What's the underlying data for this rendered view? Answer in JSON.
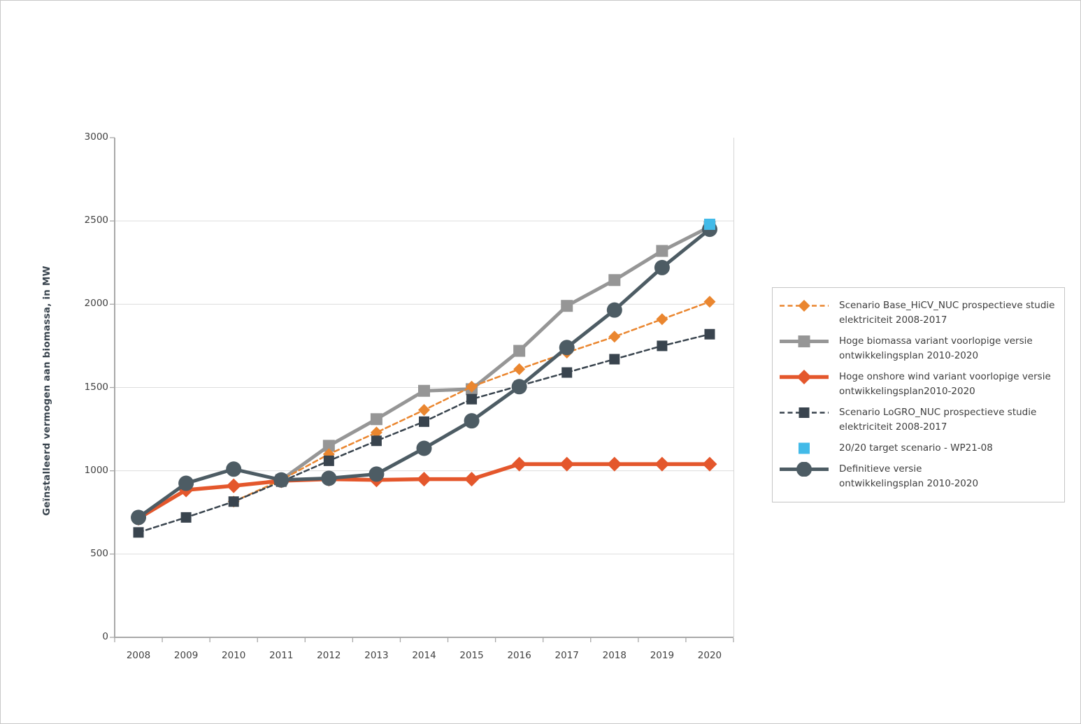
{
  "page": {
    "background": "#ffffff",
    "border_color": "#c8c8c8"
  },
  "chart_data": {
    "type": "line",
    "title": "",
    "xlabel": "",
    "ylabel": "Geïnstalleerd vermogen aan biomassa, in MW",
    "ylim": [
      0,
      3000
    ],
    "y_tick_step": 500,
    "grid": "horizontal",
    "legend_position": "right",
    "x": [
      "2008",
      "2009",
      "2010",
      "2011",
      "2012",
      "2013",
      "2014",
      "2015",
      "2016",
      "2017",
      "2018",
      "2019",
      "2020"
    ],
    "series": [
      {
        "key": "hoge_biomassa",
        "name": "Hoge biomassa variant voorlopige versie ontwikkelingsplan 2010-2020",
        "color": "#969696",
        "line": "solid",
        "line_width": 5,
        "marker": "square",
        "marker_size": 17,
        "values": [
          null,
          null,
          null,
          945,
          1150,
          1310,
          1480,
          1490,
          1720,
          1990,
          2145,
          2320,
          2465
        ]
      },
      {
        "key": "base_hicv",
        "name": "Scenario Base_HiCV_NUC prospectieve studie elektriciteit 2008-2017",
        "color": "#EA862F",
        "line": "dashed",
        "line_width": 2.5,
        "marker": "diamond",
        "marker_size": 17,
        "values": [
          null,
          null,
          815,
          945,
          1100,
          1230,
          1365,
          1505,
          1610,
          1710,
          1805,
          1910,
          2015
        ]
      },
      {
        "key": "logro",
        "name": "Scenario LoGRO_NUC prospectieve studie elektriciteit 2008-2017",
        "color": "#39444E",
        "line": "dashed",
        "line_width": 2.5,
        "marker": "square",
        "marker_size": 15,
        "values": [
          630,
          720,
          815,
          935,
          1060,
          1180,
          1295,
          1430,
          1510,
          1590,
          1670,
          1750,
          1820
        ]
      },
      {
        "key": "onshore_wind",
        "name": "Hoge onshore wind variant voorlopige versie ontwikkelingsplan2010-2020",
        "color": "#E4572C",
        "line": "solid",
        "line_width": 5.5,
        "marker": "diamond",
        "marker_size": 21,
        "values": [
          715,
          885,
          910,
          940,
          950,
          945,
          950,
          950,
          1040,
          1040,
          1040,
          1040,
          1040
        ]
      },
      {
        "key": "definitieve",
        "name": "Definitieve versie ontwikkelingsplan 2010-2020",
        "color": "#4D5C64",
        "line": "solid",
        "line_width": 5,
        "marker": "circle",
        "marker_size": 22,
        "values": [
          720,
          925,
          1010,
          945,
          955,
          980,
          1135,
          1300,
          1505,
          1740,
          1965,
          2220,
          2450
        ]
      },
      {
        "key": "target_2020",
        "name": "20/20 target scenario - WP21-08",
        "color": "#42BAE8",
        "line": "none",
        "line_width": 0,
        "marker": "square",
        "marker_size": 16,
        "values": [
          null,
          null,
          null,
          null,
          null,
          null,
          null,
          null,
          null,
          null,
          null,
          null,
          2480
        ]
      }
    ]
  },
  "axes": {
    "y_title": "Geïnstalleerd vermogen aan biomassa, in MW",
    "y_ticks": [
      "0",
      "500",
      "1000",
      "1500",
      "2000",
      "2500",
      "3000"
    ],
    "x_ticks": [
      "2008",
      "2009",
      "2010",
      "2011",
      "2012",
      "2013",
      "2014",
      "2015",
      "2016",
      "2017",
      "2018",
      "2019",
      "2020"
    ]
  },
  "legend": {
    "items": [
      {
        "series_key": "base_hicv",
        "lines": [
          "Scenario Base_HiCV_NUC prospectieve studie",
          "elektriciteit 2008-2017"
        ]
      },
      {
        "series_key": "hoge_biomassa",
        "lines": [
          "Hoge biomassa variant voorlopige versie",
          "ontwikkelingsplan 2010-2020"
        ]
      },
      {
        "series_key": "onshore_wind",
        "lines": [
          "Hoge onshore wind variant voorlopige versie",
          "ontwikkelingsplan2010-2020"
        ]
      },
      {
        "series_key": "logro",
        "lines": [
          "Scenario LoGRO_NUC prospectieve studie",
          "elektriciteit 2008-2017"
        ]
      },
      {
        "series_key": "target_2020",
        "lines": [
          "20/20 target scenario - WP21-08"
        ]
      },
      {
        "series_key": "definitieve",
        "lines": [
          "Definitieve versie",
          "ontwikkelingsplan 2010-2020"
        ]
      }
    ]
  },
  "style": {
    "grid_color": "#dddddd",
    "axis_color": "#a8a8a8",
    "plot_right_border_color": "#d6d6d6",
    "tick_label_color": "#414141",
    "axis_title_color": "#39444E",
    "legend_border_color": "#c5c5c5",
    "legend_text_color": "#3e3e3e"
  }
}
